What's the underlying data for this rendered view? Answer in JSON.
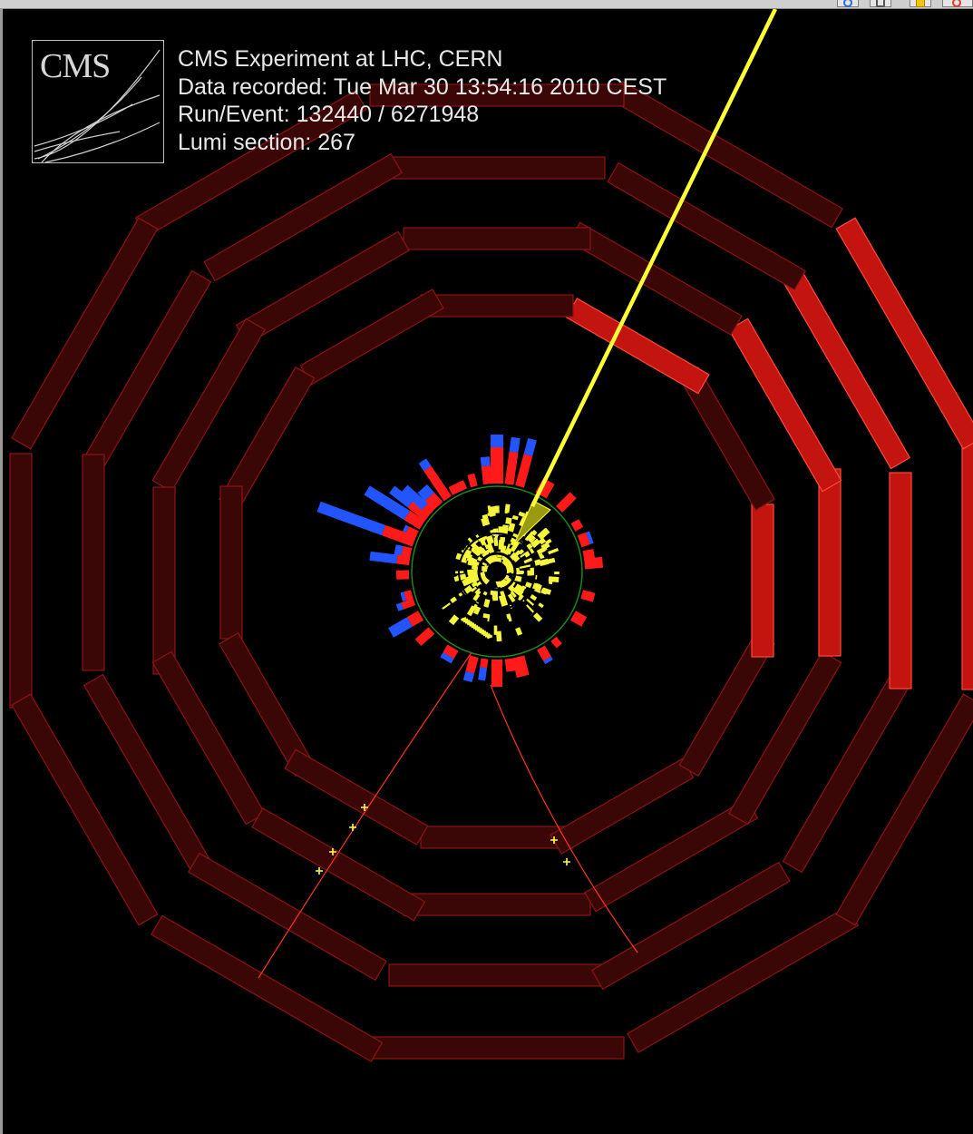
{
  "event_info": {
    "line1": "CMS Experiment at LHC, CERN",
    "line2": "Data recorded: Tue Mar 30 13:54:16 2010 CEST",
    "line3": "Run/Event: 132440 / 6271948",
    "line4": "Lumi section: 267"
  },
  "logo": {
    "text": "CMS"
  },
  "toolbar": {
    "icons": [
      "info-icon",
      "print-icon",
      "folder-icon",
      "close-icon"
    ]
  },
  "colors": {
    "background": "#000000",
    "muon_chamber_idle": "#3a0606",
    "muon_chamber_idle_edge": "#8a1414",
    "muon_chamber_hit": "#c4140f",
    "muon_chamber_hit_edge": "#ff4a3a",
    "jet_track": "#ffff33",
    "muon_track": "#ff3322",
    "hcal_deposit": "#2255ff",
    "ecal_deposit": "#ff1a1a",
    "tracker_hits": "#f5f53a",
    "tracker_outline": "#1a8a1a"
  }
}
